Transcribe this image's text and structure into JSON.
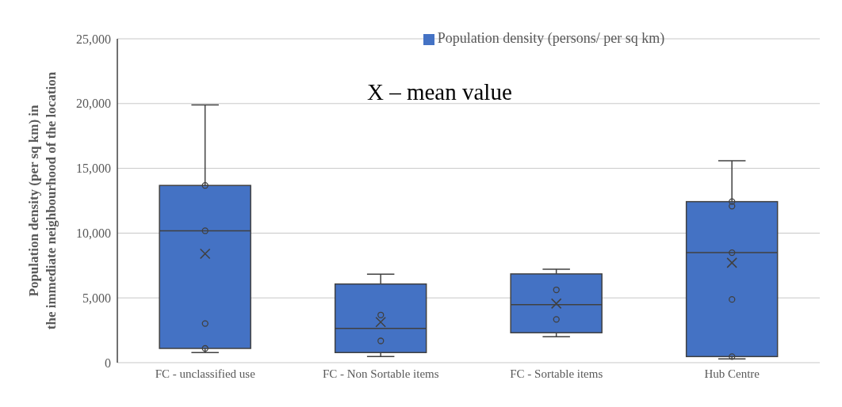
{
  "chart_data": {
    "type": "box",
    "ylabel": "Population density (per sq km) in the immediate neighbourhood of the location",
    "categories": [
      "FC - unclassified use",
      "FC - Non Sortable items",
      "FC - Sortable items",
      "Hub Centre"
    ],
    "series": [
      {
        "name": "Population density (persons/ per sq km)",
        "color": "#4472c4",
        "boxes": [
          {
            "low": 780,
            "q1": 1100,
            "median": 10180,
            "q3": 13680,
            "high": 19900,
            "mean": 8410
          },
          {
            "low": 470,
            "q1": 780,
            "median": 2650,
            "q3": 6070,
            "high": 6830,
            "mean": 3130
          },
          {
            "low": 2000,
            "q1": 2310,
            "median": 4470,
            "q3": 6850,
            "high": 7220,
            "mean": 4560
          },
          {
            "low": 290,
            "q1": 470,
            "median": 8490,
            "q3": 12430,
            "high": 15590,
            "mean": 7710
          }
        ]
      },
      {
        "type": "scatter",
        "color": "#404040",
        "x": [
          "FC - unclassified use",
          "FC - unclassified use",
          "FC - unclassified use",
          "FC - unclassified use",
          "FC - Non Sortable items",
          "FC - Non Sortable items",
          "FC - Sortable items",
          "FC - Sortable items",
          "Hub Centre",
          "Hub Centre",
          "Hub Centre",
          "Hub Centre",
          "Hub Centre"
        ],
        "values": [
          13680,
          10180,
          3020,
          1100,
          3680,
          1680,
          5620,
          3340,
          12430,
          12080,
          8490,
          4880,
          470
        ]
      }
    ],
    "ylim": [
      0,
      25000
    ],
    "yticks": [
      {
        "value": 0,
        "label": "0"
      },
      {
        "value": 5000,
        "label": "5,000"
      },
      {
        "value": 10000,
        "label": "10,000"
      },
      {
        "value": 15000,
        "label": "15,000"
      },
      {
        "value": 20000,
        "label": "20,000"
      },
      {
        "value": 25000,
        "label": "25,000"
      }
    ],
    "grid": "y",
    "legend": "top",
    "marker": "circle",
    "annotations": [
      "X – mean value"
    ]
  }
}
